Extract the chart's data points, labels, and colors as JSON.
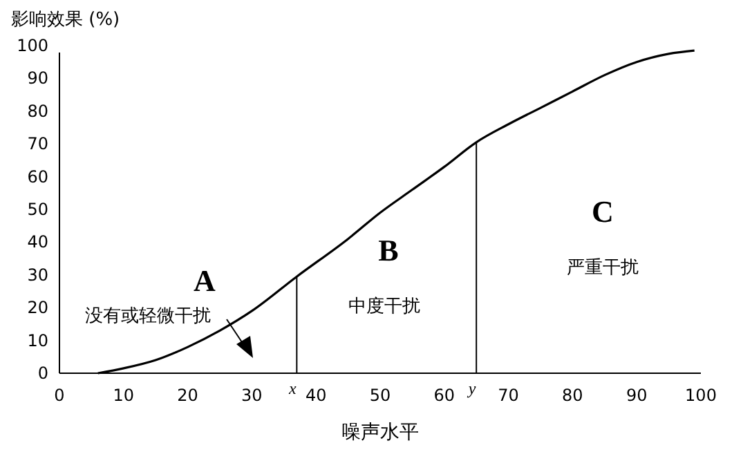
{
  "chart_data": {
    "type": "line",
    "xlabel": "噪声水平",
    "ylabel": "影响效果 (%)",
    "x": [
      6,
      10,
      15,
      20,
      25,
      30,
      37,
      45,
      50,
      55,
      60,
      65,
      70,
      75,
      80,
      85,
      90,
      95,
      99
    ],
    "series": [
      {
        "color": "#000000",
        "values": [
          0,
          1.5,
          4,
          8,
          13,
          19,
          29.5,
          41,
          49,
          56,
          63,
          70.5,
          76,
          81,
          86,
          91,
          95,
          97.5,
          98.5
        ]
      }
    ],
    "xlim": [
      0,
      100
    ],
    "ylim": [
      0,
      100
    ],
    "xticks": [
      0,
      10,
      20,
      30,
      40,
      50,
      60,
      70,
      80,
      90,
      100
    ],
    "yticks": [
      0,
      10,
      20,
      30,
      40,
      50,
      60,
      70,
      80,
      90,
      100
    ],
    "ref_lines": [
      {
        "axis": "x",
        "value": 37,
        "label": "x"
      },
      {
        "axis": "x",
        "value": 65,
        "label": "y"
      }
    ],
    "annotations": [
      "A",
      "没有或轻微干扰",
      "B",
      "中度干扰",
      "C",
      "严重干扰"
    ],
    "grid": false,
    "marker": "none",
    "line_style": "solid"
  }
}
